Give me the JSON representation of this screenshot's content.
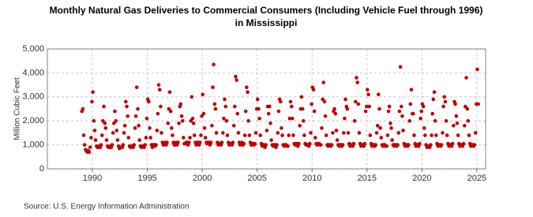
{
  "chart_data": {
    "type": "scatter",
    "title": [
      "Monthly Natural Gas Deliveries to Commercial Consumers (Including Vehicle Fuel through 1996)",
      "in Mississippi"
    ],
    "y_label": "Million Cubic Feet",
    "source": "Source: U.S. Energy Information Administration",
    "color": "#c00000",
    "grid": true,
    "xlim": [
      1985.9,
      2025.8
    ],
    "xticks": [
      1990,
      1995,
      2000,
      2005,
      2010,
      2015,
      2020,
      2025
    ],
    "ylim": [
      0,
      5000
    ],
    "yticks": [
      0,
      {
        "value": 1000,
        "label": "1,000"
      },
      {
        "value": 2000,
        "label": "2,000"
      },
      {
        "value": 3000,
        "label": "3,000"
      },
      {
        "value": 4000,
        "label": "4,000"
      },
      {
        "value": 5000,
        "label": "5,000"
      }
    ],
    "x": [
      1989.04,
      1989.13,
      1989.21,
      1989.29,
      1989.38,
      1989.46,
      1989.54,
      1989.63,
      1989.71,
      1989.79,
      1989.88,
      1989.96,
      1990.04,
      1990.13,
      1990.21,
      1990.29,
      1990.38,
      1990.46,
      1990.54,
      1990.63,
      1990.71,
      1990.79,
      1990.88,
      1990.96,
      1991.04,
      1991.13,
      1991.21,
      1991.29,
      1991.38,
      1991.46,
      1991.54,
      1991.63,
      1991.71,
      1991.79,
      1991.88,
      1991.96,
      1992.04,
      1992.13,
      1992.21,
      1992.29,
      1992.38,
      1992.46,
      1992.54,
      1992.63,
      1992.71,
      1992.79,
      1992.88,
      1992.96,
      1993.04,
      1993.13,
      1993.21,
      1993.29,
      1993.38,
      1993.46,
      1993.54,
      1993.63,
      1993.71,
      1993.79,
      1993.88,
      1993.96,
      1994.04,
      1994.13,
      1994.21,
      1994.29,
      1994.38,
      1994.46,
      1994.54,
      1994.63,
      1994.71,
      1994.79,
      1994.88,
      1994.96,
      1995.04,
      1995.13,
      1995.21,
      1995.29,
      1995.38,
      1995.46,
      1995.54,
      1995.63,
      1995.71,
      1995.79,
      1995.88,
      1995.96,
      1996.04,
      1996.13,
      1996.21,
      1996.29,
      1996.38,
      1996.46,
      1996.54,
      1996.63,
      1996.71,
      1996.79,
      1996.88,
      1996.96,
      1997.04,
      1997.13,
      1997.21,
      1997.29,
      1997.38,
      1997.46,
      1997.54,
      1997.63,
      1997.71,
      1997.79,
      1997.88,
      1997.96,
      1998.04,
      1998.13,
      1998.21,
      1998.29,
      1998.38,
      1998.46,
      1998.54,
      1998.63,
      1998.71,
      1998.79,
      1998.88,
      1998.96,
      1999.04,
      1999.13,
      1999.21,
      1999.29,
      1999.38,
      1999.46,
      1999.54,
      1999.63,
      1999.71,
      1999.79,
      1999.88,
      1999.96,
      2000.04,
      2000.13,
      2000.21,
      2000.29,
      2000.38,
      2000.46,
      2000.54,
      2000.63,
      2000.71,
      2000.79,
      2000.88,
      2000.96,
      2001.04,
      2001.13,
      2001.21,
      2001.29,
      2001.38,
      2001.46,
      2001.54,
      2001.63,
      2001.71,
      2001.79,
      2001.88,
      2001.96,
      2002.04,
      2002.13,
      2002.21,
      2002.29,
      2002.38,
      2002.46,
      2002.54,
      2002.63,
      2002.71,
      2002.79,
      2002.88,
      2002.96,
      2003.04,
      2003.13,
      2003.21,
      2003.29,
      2003.38,
      2003.46,
      2003.54,
      2003.63,
      2003.71,
      2003.79,
      2003.88,
      2003.96,
      2004.04,
      2004.13,
      2004.21,
      2004.29,
      2004.38,
      2004.46,
      2004.54,
      2004.63,
      2004.71,
      2004.79,
      2004.88,
      2004.96,
      2005.04,
      2005.13,
      2005.21,
      2005.29,
      2005.38,
      2005.46,
      2005.54,
      2005.63,
      2005.71,
      2005.79,
      2005.88,
      2005.96,
      2006.04,
      2006.13,
      2006.21,
      2006.29,
      2006.38,
      2006.46,
      2006.54,
      2006.63,
      2006.71,
      2006.79,
      2006.88,
      2006.96,
      2007.04,
      2007.13,
      2007.21,
      2007.29,
      2007.38,
      2007.46,
      2007.54,
      2007.63,
      2007.71,
      2007.79,
      2007.88,
      2007.96,
      2008.04,
      2008.13,
      2008.21,
      2008.29,
      2008.38,
      2008.46,
      2008.54,
      2008.63,
      2008.71,
      2008.79,
      2008.88,
      2008.96,
      2009.04,
      2009.13,
      2009.21,
      2009.29,
      2009.38,
      2009.46,
      2009.54,
      2009.63,
      2009.71,
      2009.79,
      2009.88,
      2009.96,
      2010.04,
      2010.13,
      2010.21,
      2010.29,
      2010.38,
      2010.46,
      2010.54,
      2010.63,
      2010.71,
      2010.79,
      2010.88,
      2010.96,
      2011.04,
      2011.13,
      2011.21,
      2011.29,
      2011.38,
      2011.46,
      2011.54,
      2011.63,
      2011.71,
      2011.79,
      2011.88,
      2011.96,
      2012.04,
      2012.13,
      2012.21,
      2012.29,
      2012.38,
      2012.46,
      2012.54,
      2012.63,
      2012.71,
      2012.79,
      2012.88,
      2012.96,
      2013.04,
      2013.13,
      2013.21,
      2013.29,
      2013.38,
      2013.46,
      2013.54,
      2013.63,
      2013.71,
      2013.79,
      2013.88,
      2013.96,
      2014.04,
      2014.13,
      2014.21,
      2014.29,
      2014.38,
      2014.46,
      2014.54,
      2014.63,
      2014.71,
      2014.79,
      2014.88,
      2014.96,
      2015.04,
      2015.13,
      2015.21,
      2015.29,
      2015.38,
      2015.46,
      2015.54,
      2015.63,
      2015.71,
      2015.79,
      2015.88,
      2015.96,
      2016.04,
      2016.13,
      2016.21,
      2016.29,
      2016.38,
      2016.46,
      2016.54,
      2016.63,
      2016.71,
      2016.79,
      2016.88,
      2016.96,
      2017.04,
      2017.13,
      2017.21,
      2017.29,
      2017.38,
      2017.46,
      2017.54,
      2017.63,
      2017.71,
      2017.79,
      2017.88,
      2017.96,
      2018.04,
      2018.13,
      2018.21,
      2018.29,
      2018.38,
      2018.46,
      2018.54,
      2018.63,
      2018.71,
      2018.79,
      2018.88,
      2018.96,
      2019.04,
      2019.13,
      2019.21,
      2019.29,
      2019.38,
      2019.46,
      2019.54,
      2019.63,
      2019.71,
      2019.79,
      2019.88,
      2019.96,
      2020.04,
      2020.13,
      2020.21,
      2020.29,
      2020.38,
      2020.46,
      2020.54,
      2020.63,
      2020.71,
      2020.79,
      2020.88,
      2020.96,
      2021.04,
      2021.13,
      2021.21,
      2021.29,
      2021.38,
      2021.46,
      2021.54,
      2021.63,
      2021.71,
      2021.79,
      2021.88,
      2021.96,
      2022.04,
      2022.13,
      2022.21,
      2022.29,
      2022.38,
      2022.46,
      2022.54,
      2022.63,
      2022.71,
      2022.79,
      2022.88,
      2022.96,
      2023.04,
      2023.13,
      2023.21,
      2023.29,
      2023.38,
      2023.46,
      2023.54,
      2023.63,
      2023.71,
      2023.79,
      2023.88,
      2023.96,
      2024.04,
      2024.13,
      2024.21,
      2024.29,
      2024.38,
      2024.46,
      2024.54,
      2024.63,
      2024.71,
      2024.79,
      2024.88,
      2024.96,
      2025.04,
      2025.13
    ],
    "values": [
      2400,
      2500,
      1400,
      1000,
      800,
      750,
      700,
      750,
      700,
      900,
      1300,
      2800,
      3200,
      2000,
      1600,
      1200,
      950,
      900,
      900,
      950,
      900,
      1000,
      1400,
      2000,
      2600,
      1900,
      1700,
      1200,
      950,
      900,
      900,
      950,
      900,
      1000,
      1500,
      1900,
      2400,
      2000,
      1600,
      1200,
      950,
      850,
      900,
      900,
      900,
      1000,
      1500,
      1800,
      2800,
      2600,
      2200,
      1300,
      950,
      900,
      950,
      950,
      900,
      1000,
      1700,
      2200,
      3400,
      2500,
      1800,
      1200,
      950,
      900,
      950,
      950,
      900,
      1000,
      1300,
      2100,
      2900,
      2800,
      1700,
      1300,
      1000,
      900,
      1000,
      1000,
      950,
      1000,
      1600,
      2300,
      3500,
      3300,
      2600,
      1500,
      1100,
      1000,
      1050,
      1100,
      1000,
      1100,
      1900,
      2500,
      3200,
      2400,
      1700,
      1400,
      1100,
      1000,
      1000,
      1100,
      1000,
      1100,
      1900,
      2600,
      2700,
      2200,
      2000,
      1300,
      1050,
      1050,
      1100,
      1100,
      1000,
      1100,
      1300,
      2000,
      3000,
      2100,
      1900,
      1400,
      1100,
      1000,
      1100,
      1100,
      1000,
      1100,
      1400,
      2200,
      3100,
      2300,
      1700,
      1300,
      1100,
      1050,
      1100,
      1100,
      1000,
      1100,
      1800,
      3400,
      4350,
      2700,
      2500,
      1500,
      1100,
      1000,
      1050,
      1050,
      1000,
      1100,
      1500,
      2100,
      2900,
      2600,
      2000,
      1400,
      1100,
      1000,
      1050,
      1050,
      1000,
      1100,
      1800,
      2600,
      3850,
      3700,
      2300,
      1500,
      1100,
      1000,
      1050,
      1100,
      1000,
      1050,
      1400,
      2400,
      3400,
      3200,
      2000,
      1400,
      1100,
      1000,
      1050,
      1050,
      1000,
      1050,
      1500,
      2500,
      2900,
      2500,
      2100,
      1400,
      1050,
      950,
      1000,
      1000,
      900,
      1000,
      1600,
      2600,
      2300,
      2600,
      1900,
      1200,
      1000,
      950,
      1000,
      1000,
      900,
      1000,
      1500,
      2400,
      2900,
      2800,
      1700,
      1400,
      1000,
      950,
      1000,
      1000,
      950,
      950,
      1400,
      2100,
      2800,
      2600,
      2100,
      1400,
      1050,
      1000,
      1050,
      1050,
      950,
      1050,
      1800,
      2500,
      3000,
      2500,
      2000,
      1400,
      1050,
      1000,
      1000,
      1000,
      950,
      1050,
      1500,
      2700,
      3400,
      3300,
      2400,
      1300,
      1050,
      1000,
      1050,
      1050,
      1000,
      1000,
      1700,
      2900,
      3600,
      2800,
      2200,
      1400,
      1000,
      950,
      1000,
      1000,
      950,
      1000,
      1500,
      2400,
      2500,
      2300,
      1600,
      1200,
      1000,
      950,
      1000,
      1000,
      950,
      1000,
      1500,
      2100,
      2900,
      2600,
      2500,
      1500,
      1050,
      950,
      1000,
      1000,
      950,
      1050,
      2000,
      2800,
      3800,
      3600,
      2700,
      1500,
      1050,
      950,
      1000,
      1000,
      950,
      1050,
      2400,
      2600,
      3300,
      3100,
      2600,
      1400,
      1050,
      950,
      1000,
      1000,
      950,
      1000,
      1500,
      1800,
      3100,
      2500,
      1700,
      1300,
      1000,
      950,
      1000,
      1000,
      950,
      950,
      1400,
      2400,
      2600,
      1900,
      1700,
      1200,
      1000,
      950,
      1000,
      1000,
      950,
      1000,
      1500,
      2400,
      4250,
      2600,
      2200,
      1600,
      1050,
      950,
      1000,
      1000,
      950,
      1000,
      2000,
      2700,
      3300,
      2300,
      2300,
      1400,
      1050,
      950,
      1000,
      1000,
      950,
      1050,
      2100,
      2400,
      2700,
      2600,
      1700,
      1400,
      1000,
      900,
      950,
      950,
      900,
      1000,
      1400,
      2300,
      2900,
      3200,
      2000,
      1400,
      1050,
      950,
      1000,
      1000,
      950,
      1000,
      1500,
      2600,
      3000,
      2800,
      2000,
      1400,
      1050,
      950,
      1000,
      1000,
      950,
      1050,
      1800,
      2800,
      2700,
      2200,
      1900,
      1400,
      1050,
      950,
      1000,
      1000,
      950,
      1050,
      1800,
      2600,
      3800,
      2500,
      2000,
      1400,
      1050,
      950,
      1000,
      1000,
      950,
      1000,
      1500,
      2700,
      4150,
      2700
    ]
  }
}
